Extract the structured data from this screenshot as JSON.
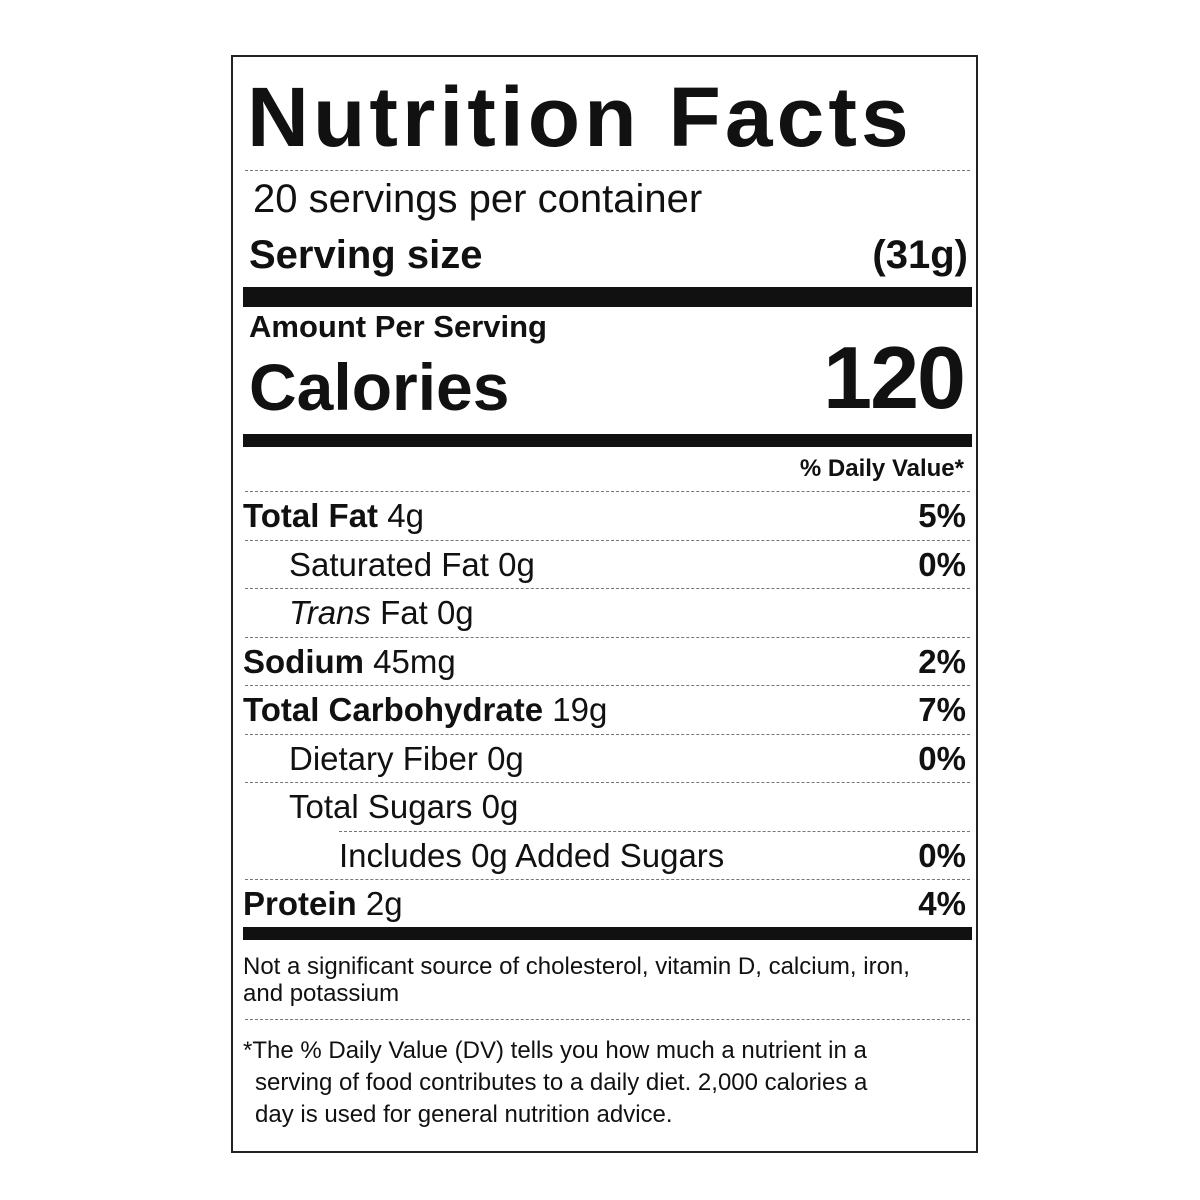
{
  "title": "Nutrition Facts",
  "servings_per_container": "20 servings per container",
  "serving_size": {
    "label": "Serving size",
    "value": "(31g)"
  },
  "amount_per_serving": "Amount Per Serving",
  "calories": {
    "label": "Calories",
    "value": "120"
  },
  "daily_value_header": "% Daily Value*",
  "nutrients": [
    {
      "name": "Total Fat",
      "amount": "4g",
      "dv": "5%",
      "bold": true,
      "level": 0
    },
    {
      "name": "Saturated Fat",
      "amount": "0g",
      "dv": "0%",
      "bold": false,
      "level": 1
    },
    {
      "name": "Trans",
      "name_rest": "Fat",
      "amount": "0g",
      "dv": "",
      "bold": false,
      "level": 1,
      "italic": true
    },
    {
      "name": "Sodium",
      "amount": "45mg",
      "dv": "2%",
      "bold": true,
      "level": 0
    },
    {
      "name": "Total Carbohydrate",
      "amount": "19g",
      "dv": "7%",
      "bold": true,
      "level": 0
    },
    {
      "name": "Dietary Fiber",
      "amount": "0g",
      "dv": "0%",
      "bold": false,
      "level": 1
    },
    {
      "name": "Total Sugars",
      "amount": "0g",
      "dv": "",
      "bold": false,
      "level": 1
    },
    {
      "name": "Includes 0g Added Sugars",
      "amount": "",
      "dv": "0%",
      "bold": false,
      "level": 2
    },
    {
      "name": "Protein",
      "amount": "2g",
      "dv": "4%",
      "bold": true,
      "level": 0
    }
  ],
  "not_significant_note": "Not a significant source of cholesterol, vitamin D, calcium, iron, and potassium",
  "footnote": {
    "marker": "*",
    "line1": "The % Daily Value (DV) tells you how much a nutrient in a",
    "line2": "serving of food contributes to a daily diet. 2,000 calories a",
    "line3": "day is used for general nutrition advice."
  }
}
